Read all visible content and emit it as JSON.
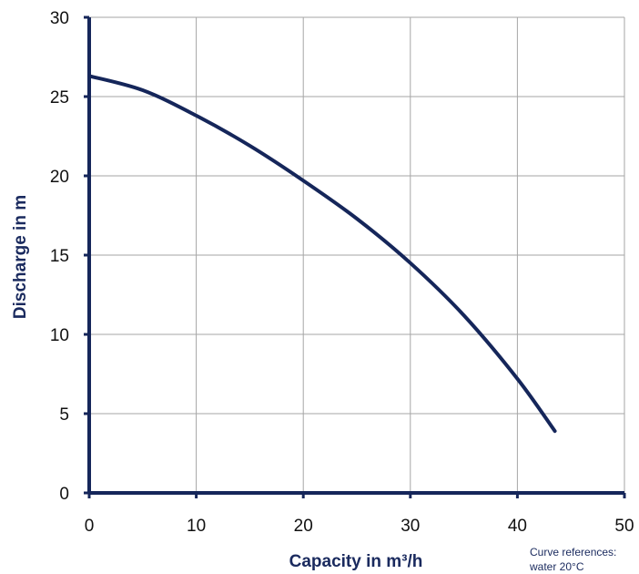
{
  "colors": {
    "curve": "#15265a",
    "axis": "#15265a",
    "grid": "#a6a6a6",
    "axis_title": "#1a2a5e"
  },
  "chart_data": {
    "type": "line",
    "title": "",
    "xlabel": "Capacity in m³/h",
    "ylabel": "Discharge in m",
    "xlim": [
      0,
      50
    ],
    "ylim": [
      0,
      30
    ],
    "x_ticks": [
      0,
      10,
      20,
      30,
      40,
      50
    ],
    "y_ticks": [
      0,
      5,
      10,
      15,
      20,
      25,
      30
    ],
    "grid": true,
    "legend": "none",
    "series": [
      {
        "x": [
          0,
          5,
          10,
          15,
          20,
          25,
          30,
          35,
          40,
          43.5
        ],
        "y": [
          26.3,
          25.4,
          23.8,
          21.9,
          19.7,
          17.3,
          14.5,
          11.2,
          7.2,
          3.9
        ]
      }
    ],
    "annotations": [
      "Curve references:",
      "water 20°C"
    ]
  }
}
